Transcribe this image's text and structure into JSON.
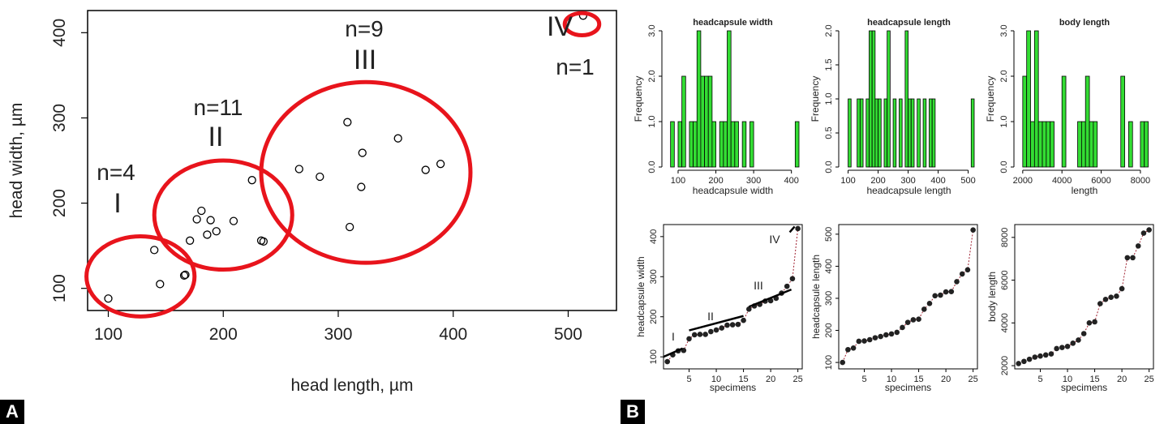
{
  "panels": {
    "a": "A",
    "b": "B"
  },
  "chart_data": [
    {
      "type": "scatter",
      "xlabel": "head length, µm",
      "ylabel": "head width, µm",
      "xlim": [
        82,
        542
      ],
      "ylim": [
        74,
        426
      ],
      "xticks": [
        100,
        200,
        300,
        400,
        500
      ],
      "yticks": [
        100,
        200,
        300,
        400
      ],
      "points": [
        [
          100,
          88
        ],
        [
          140,
          145
        ],
        [
          145,
          105
        ],
        [
          166,
          115
        ],
        [
          167,
          116
        ],
        [
          171,
          156
        ],
        [
          177,
          181
        ],
        [
          181,
          191
        ],
        [
          186,
          163
        ],
        [
          189,
          180
        ],
        [
          194,
          167
        ],
        [
          209,
          179
        ],
        [
          225,
          227
        ],
        [
          233,
          156
        ],
        [
          235,
          155
        ],
        [
          266,
          240
        ],
        [
          284,
          231
        ],
        [
          308,
          295
        ],
        [
          310,
          172
        ],
        [
          320,
          219
        ],
        [
          321,
          259
        ],
        [
          352,
          276
        ],
        [
          376,
          239
        ],
        [
          389,
          246
        ],
        [
          513,
          420
        ]
      ],
      "groups": [
        {
          "label": "I",
          "count": "n=4",
          "cx": 128,
          "cy": 114,
          "rx": 47,
          "ry": 47
        },
        {
          "label": "II",
          "count": "n=11",
          "cx": 200,
          "cy": 186,
          "rx": 60,
          "ry": 64
        },
        {
          "label": "III",
          "count": "n=9",
          "cx": 324,
          "cy": 236,
          "rx": 91,
          "ry": 106
        },
        {
          "label": "IV",
          "count": "n=1",
          "cx": 512,
          "cy": 410,
          "rx": 15,
          "ry": 13
        }
      ],
      "ellipse_color": "#e8141c",
      "point_color": "#000000"
    },
    {
      "type": "bar",
      "title": "headcapsule width",
      "xlabel": "headcapsule width",
      "ylabel": "Frequency",
      "xlim": [
        70,
        420
      ],
      "ylim": [
        0,
        3
      ],
      "xticks": [
        100,
        200,
        300,
        400
      ],
      "yticks": [
        0,
        1,
        2,
        3
      ],
      "ytick_labels": [
        "0.0",
        "1.0",
        "2.0",
        "3.0"
      ],
      "bin_width": 10,
      "bin_starts": [
        80,
        90,
        100,
        110,
        120,
        130,
        140,
        150,
        160,
        170,
        180,
        190,
        200,
        210,
        220,
        230,
        240,
        250,
        260,
        270,
        280,
        290,
        300,
        310,
        320,
        330,
        340,
        350,
        360,
        370,
        380,
        390,
        400,
        410
      ],
      "values": [
        1,
        0,
        1,
        2,
        0,
        1,
        1,
        3,
        2,
        2,
        2,
        1,
        0,
        1,
        1,
        3,
        1,
        1,
        0,
        1,
        0,
        1,
        0,
        0,
        0,
        0,
        0,
        0,
        0,
        0,
        0,
        0,
        0,
        1
      ],
      "bar_color": "#33dd33"
    },
    {
      "type": "bar",
      "title": "headcapsule length",
      "xlabel": "headcapsule length",
      "ylabel": "Frequency",
      "xlim": [
        85,
        520
      ],
      "ylim": [
        0,
        2
      ],
      "xticks": [
        100,
        200,
        300,
        400,
        500
      ],
      "yticks": [
        0,
        0.5,
        1,
        1.5,
        2
      ],
      "ytick_labels": [
        "0.0",
        "0.5",
        "1.0",
        "1.5",
        "2.0"
      ],
      "bin_width": 10,
      "bin_starts": [
        100,
        110,
        120,
        130,
        140,
        150,
        160,
        170,
        180,
        190,
        200,
        210,
        220,
        230,
        240,
        250,
        260,
        270,
        280,
        290,
        300,
        310,
        320,
        330,
        340,
        350,
        360,
        370,
        380,
        390,
        400,
        410,
        420,
        430,
        440,
        450,
        460,
        470,
        480,
        490,
        500,
        510
      ],
      "values": [
        1,
        0,
        0,
        1,
        1,
        0,
        1,
        2,
        2,
        1,
        1,
        0,
        1,
        2,
        0,
        1,
        0,
        1,
        0,
        2,
        1,
        1,
        0,
        1,
        0,
        1,
        0,
        1,
        1,
        0,
        0,
        0,
        0,
        0,
        0,
        0,
        0,
        0,
        0,
        0,
        0,
        1
      ],
      "bar_color": "#33dd33"
    },
    {
      "type": "bar",
      "title": "body length",
      "xlabel": "length",
      "ylabel": "Frequency",
      "xlim": [
        1800,
        8500
      ],
      "ylim": [
        0,
        3
      ],
      "xticks": [
        2000,
        4000,
        6000,
        8000
      ],
      "yticks": [
        0,
        1,
        2,
        3
      ],
      "ytick_labels": [
        "0.0",
        "1.0",
        "2.0",
        "3.0"
      ],
      "bin_width": 200,
      "bin_starts": [
        2000,
        2200,
        2400,
        2600,
        2800,
        3000,
        3200,
        3400,
        3600,
        3800,
        4000,
        4200,
        4400,
        4600,
        4800,
        5000,
        5200,
        5400,
        5600,
        5800,
        6000,
        6200,
        6400,
        6600,
        6800,
        7000,
        7200,
        7400,
        7600,
        7800,
        8000,
        8200
      ],
      "values": [
        2,
        3,
        1,
        3,
        1,
        1,
        1,
        1,
        0,
        0,
        2,
        0,
        0,
        0,
        1,
        1,
        2,
        1,
        1,
        0,
        0,
        0,
        0,
        0,
        0,
        2,
        0,
        1,
        0,
        0,
        1,
        1
      ],
      "bar_color": "#33dd33"
    },
    {
      "type": "line",
      "xlabel": "specimens",
      "ylabel": "headcapsule width",
      "xlim": [
        0.3,
        25.8
      ],
      "ylim": [
        70,
        430
      ],
      "xticks": [
        5,
        10,
        15,
        20,
        25
      ],
      "yticks": [
        100,
        200,
        300,
        400
      ],
      "x": [
        1,
        2,
        3,
        4,
        5,
        6,
        7,
        8,
        9,
        10,
        11,
        12,
        13,
        14,
        15,
        16,
        17,
        18,
        19,
        20,
        21,
        22,
        23,
        24,
        25
      ],
      "y": [
        88,
        105,
        115,
        116,
        145,
        155,
        156,
        156,
        163,
        167,
        172,
        179,
        180,
        181,
        191,
        219,
        227,
        231,
        239,
        240,
        246,
        259,
        276,
        295,
        420
      ],
      "segments": [
        {
          "label": "I",
          "x": [
            0.3,
            3.8
          ],
          "y": [
            100,
            121
          ]
        },
        {
          "label": "II",
          "x": [
            5,
            15
          ],
          "y": [
            166,
            202
          ]
        },
        {
          "label": "III",
          "x": [
            16,
            23.8
          ],
          "y": [
            225,
            268
          ]
        },
        {
          "label": "IV",
          "x": [
            23.5,
            24.4
          ],
          "y": [
            411,
            425
          ]
        }
      ],
      "point_color": "#222222",
      "line_color": "#a02030"
    },
    {
      "type": "line",
      "xlabel": "specimens",
      "ylabel": "headcapsule length",
      "xlim": [
        0.3,
        25.8
      ],
      "ylim": [
        80,
        530
      ],
      "xticks": [
        5,
        10,
        15,
        20,
        25
      ],
      "yticks": [
        100,
        200,
        300,
        400,
        500
      ],
      "x": [
        1,
        2,
        3,
        4,
        5,
        6,
        7,
        8,
        9,
        10,
        11,
        12,
        13,
        14,
        15,
        16,
        17,
        18,
        19,
        20,
        21,
        22,
        23,
        24,
        25
      ],
      "y": [
        100,
        140,
        145,
        166,
        167,
        171,
        177,
        181,
        186,
        189,
        194,
        209,
        225,
        233,
        235,
        266,
        284,
        308,
        310,
        320,
        321,
        352,
        376,
        389,
        513
      ],
      "point_color": "#222222",
      "line_color": "#a02030"
    },
    {
      "type": "line",
      "xlabel": "specimens",
      "ylabel": "body length",
      "xlim": [
        0.3,
        25.8
      ],
      "ylim": [
        1850,
        8600
      ],
      "xticks": [
        5,
        10,
        15,
        20,
        25
      ],
      "yticks": [
        2000,
        4000,
        6000,
        8000
      ],
      "x": [
        1,
        2,
        3,
        4,
        5,
        6,
        7,
        8,
        9,
        10,
        11,
        12,
        13,
        14,
        15,
        16,
        17,
        18,
        19,
        20,
        21,
        22,
        23,
        24,
        25
      ],
      "y": [
        2100,
        2200,
        2300,
        2400,
        2450,
        2500,
        2550,
        2800,
        2850,
        2900,
        3050,
        3200,
        3500,
        4000,
        4050,
        4900,
        5100,
        5200,
        5250,
        5600,
        7050,
        7050,
        7600,
        8200,
        8350
      ],
      "point_color": "#222222",
      "line_color": "#a02030"
    }
  ]
}
